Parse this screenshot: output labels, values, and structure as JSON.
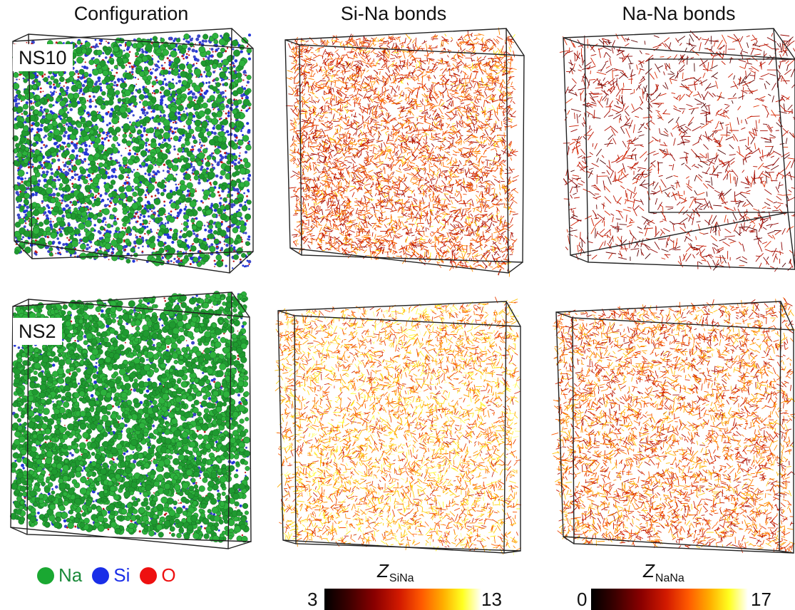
{
  "columns": {
    "configuration": "Configuration",
    "si_na": "Si-Na bonds",
    "na_na": "Na-Na bonds"
  },
  "rows": {
    "ns10": "NS10",
    "ns2": "NS2"
  },
  "legend": {
    "na": {
      "label": "Na",
      "color": "#1aa832"
    },
    "si": {
      "label": "Si",
      "color": "#1a2ee8"
    },
    "o": {
      "label": "O",
      "color": "#ee1010"
    }
  },
  "colorbars": {
    "sina": {
      "symbol": "Z",
      "subscript": "SiNa",
      "min": "3",
      "max": "13"
    },
    "nana": {
      "symbol": "Z",
      "subscript": "NaNa",
      "min": "0",
      "max": "17"
    }
  }
}
